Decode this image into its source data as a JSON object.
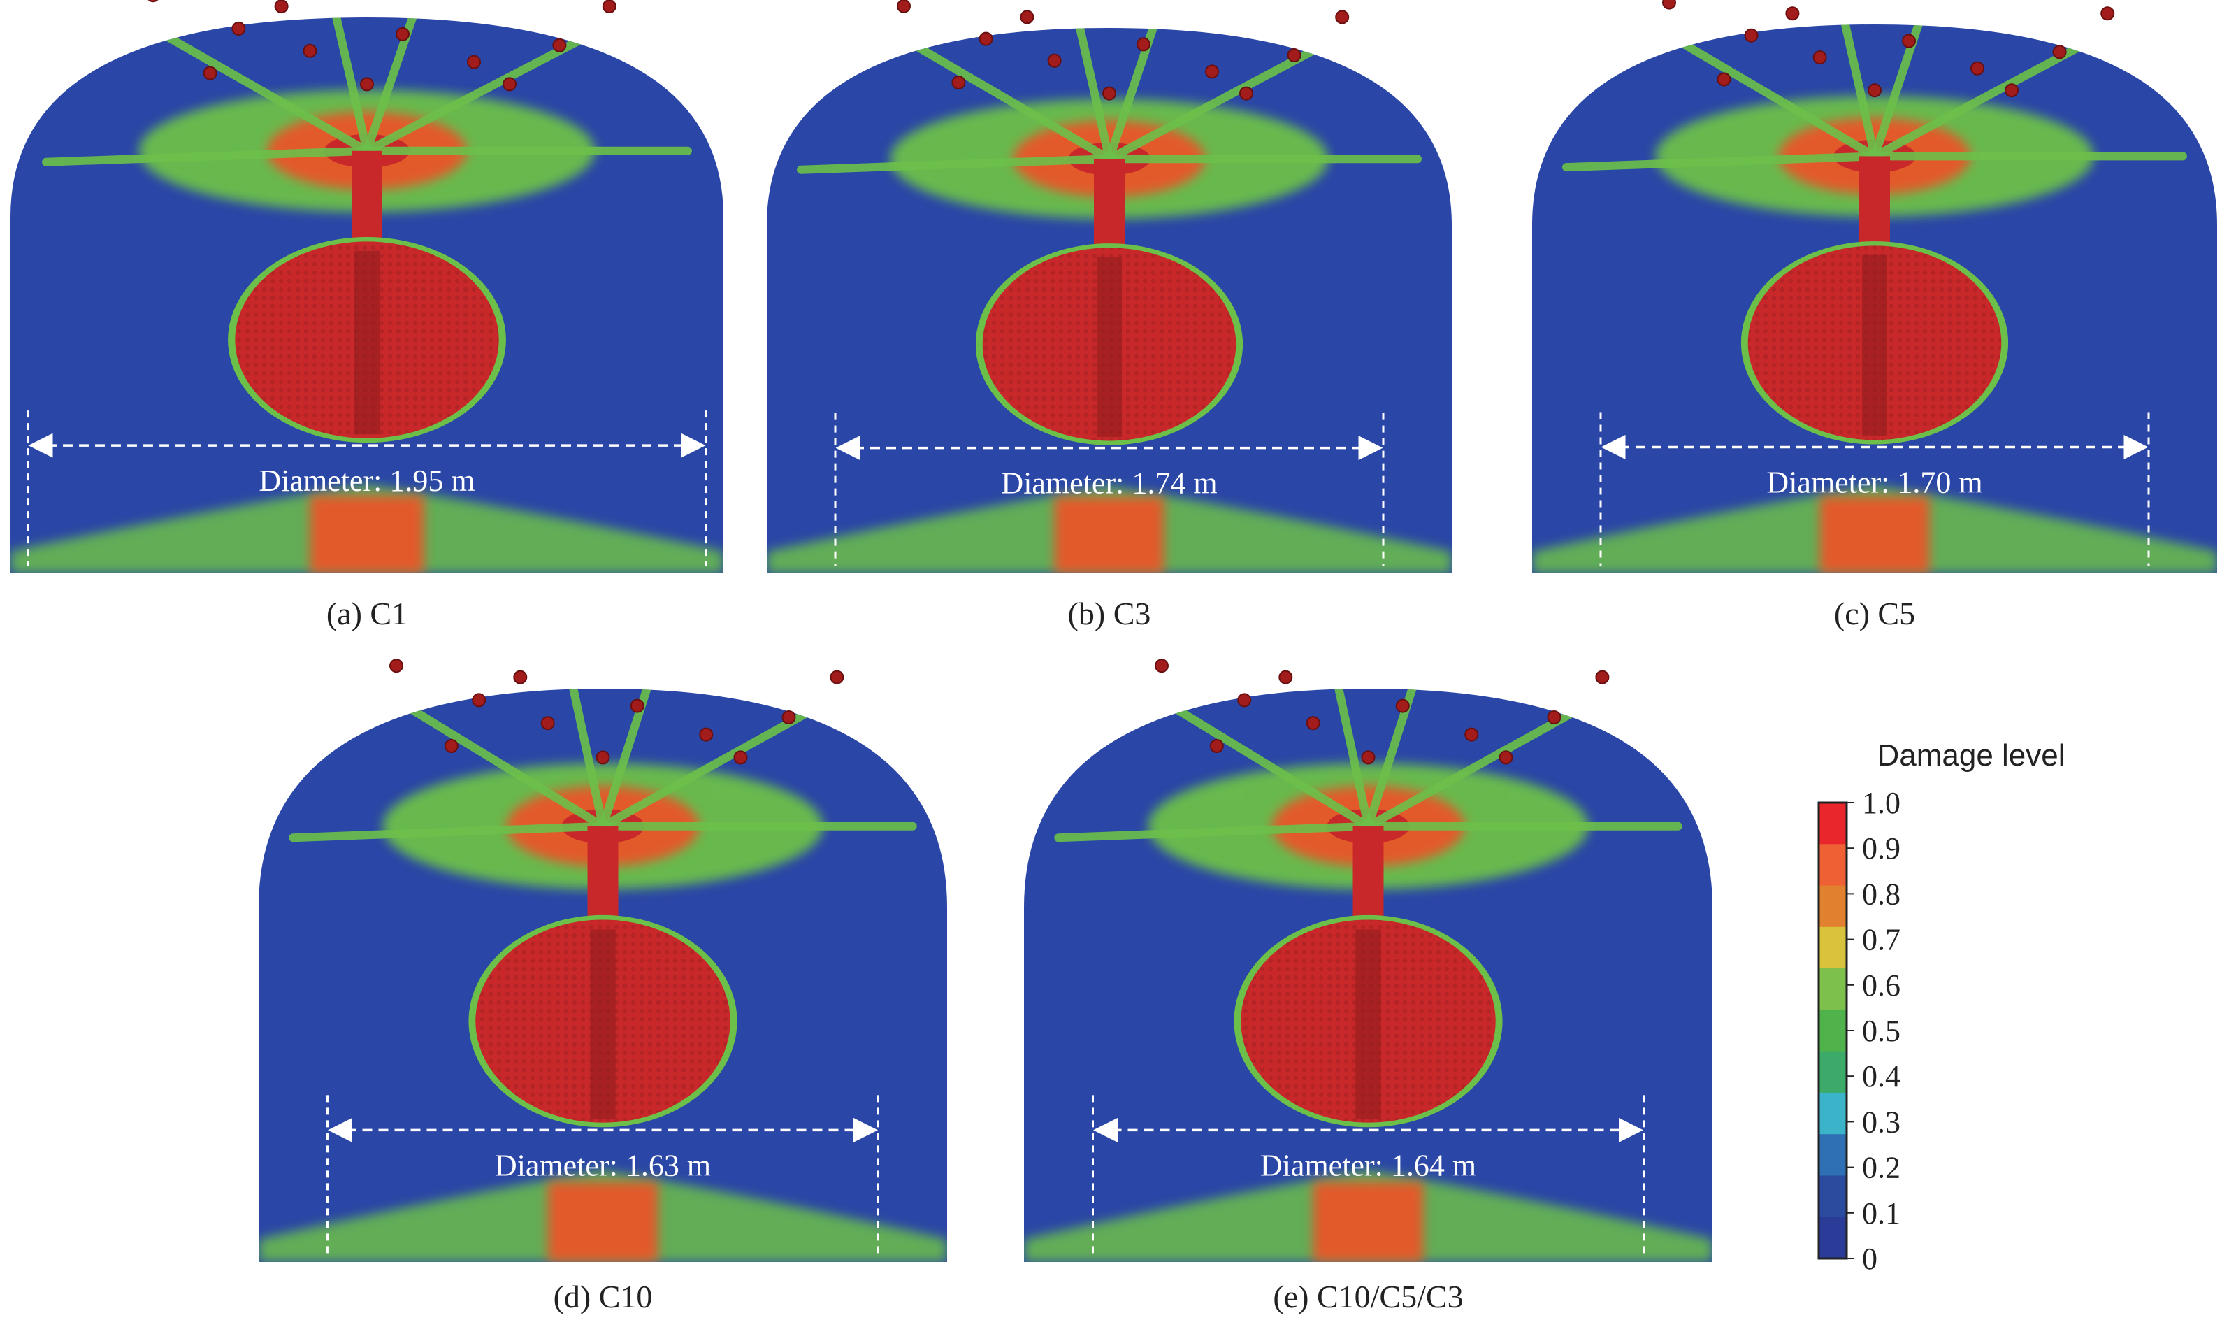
{
  "panels": [
    {
      "id": "a",
      "caption": "(a) C1",
      "diameter_label": "Diameter: 1.95 m",
      "diameter_m": 1.95
    },
    {
      "id": "b",
      "caption": "(b) C3",
      "diameter_label": "Diameter: 1.74 m",
      "diameter_m": 1.74
    },
    {
      "id": "c",
      "caption": "(c) C5",
      "diameter_label": "Diameter: 1.70 m",
      "diameter_m": 1.7
    },
    {
      "id": "d",
      "caption": "(d) C10",
      "diameter_label": "Diameter: 1.63 m",
      "diameter_m": 1.63
    },
    {
      "id": "e",
      "caption": "(e) C10/C5/C3",
      "diameter_label": "Diameter: 1.64 m",
      "diameter_m": 1.64
    }
  ],
  "legend": {
    "title": "Damage level",
    "ticks": [
      "1.0",
      "0.9",
      "0.8",
      "0.7",
      "0.6",
      "0.5",
      "0.4",
      "0.3",
      "0.2",
      "0.1",
      "0"
    ],
    "colors": [
      "#e8262b",
      "#ef6035",
      "#e1812f",
      "#d9c33c",
      "#7dc04b",
      "#4fb24a",
      "#3cab6a",
      "#3bb3c8",
      "#2f6fb3",
      "#2a4b9e",
      "#2b3b98"
    ]
  },
  "colors": {
    "background_blue": "#2a46a6",
    "damage_red": "#c8282a",
    "damage_green": "#6cc04a",
    "damage_orange": "#e35a2c",
    "debris": "#a31c1c"
  }
}
